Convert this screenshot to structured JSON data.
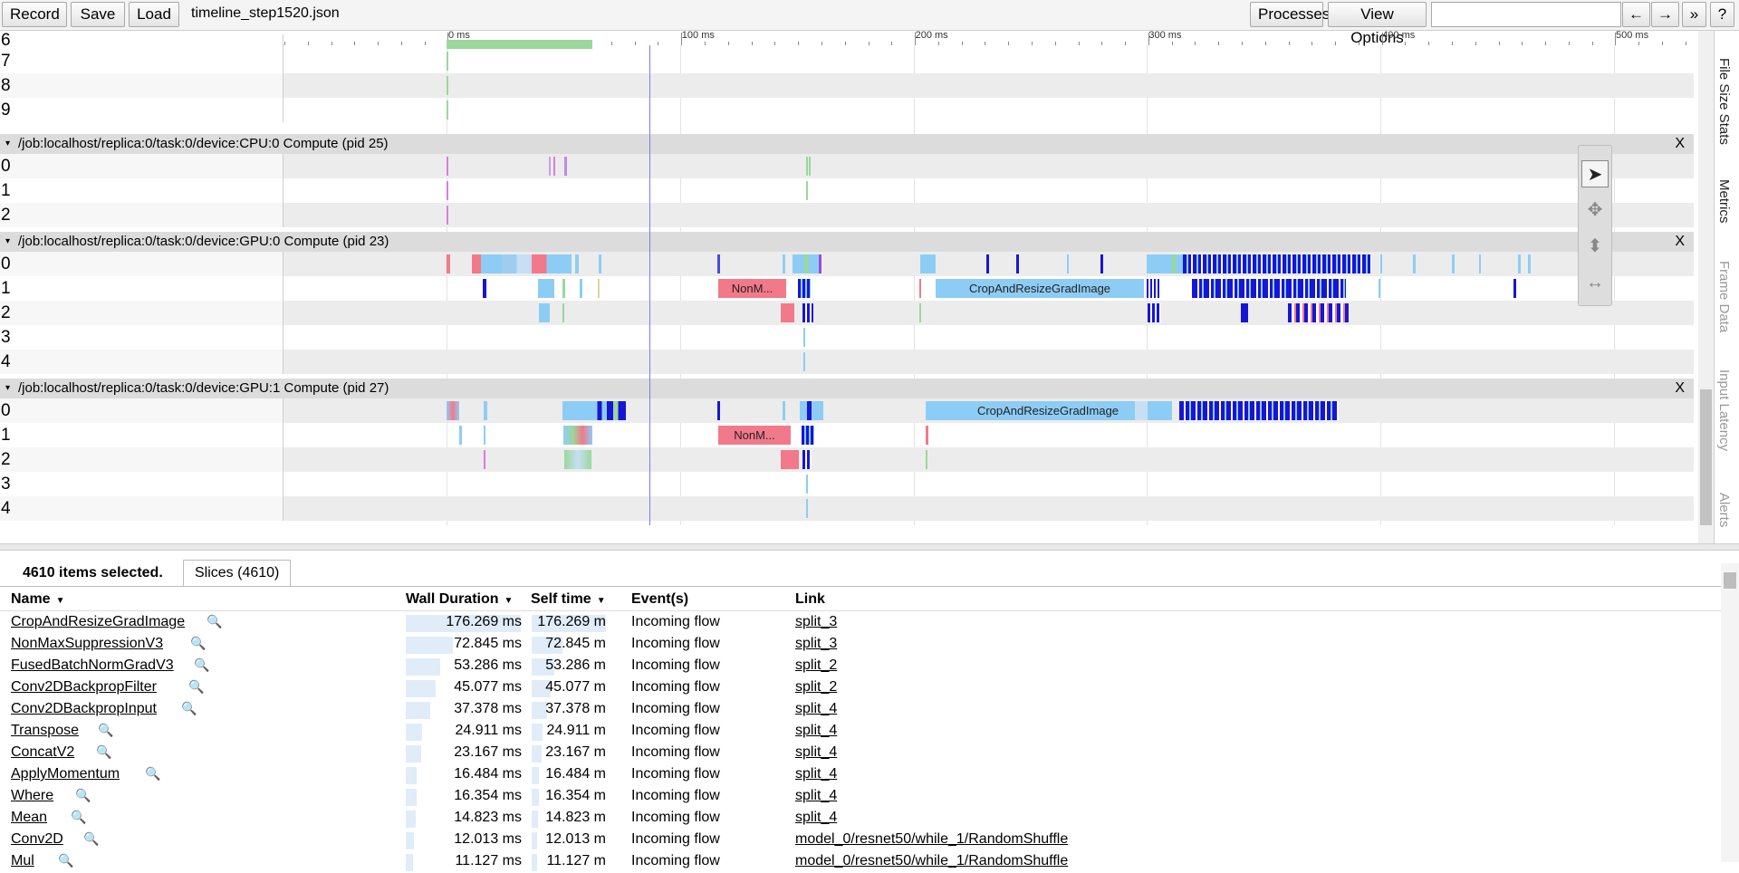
{
  "toolbar": {
    "record": "Record",
    "save": "Save",
    "load": "Load",
    "filename": "timeline_step1520.json",
    "processes": "Processes",
    "view_options": "View Options",
    "nav_left": "←",
    "nav_right": "→",
    "nav_more": "»",
    "help": "?"
  },
  "ruler": [
    "0 ms",
    "100 ms",
    "200 ms",
    "300 ms",
    "400 ms",
    "500 ms"
  ],
  "top_rows": [
    "6",
    "7",
    "8",
    "9"
  ],
  "groups": [
    {
      "title": "/job:localhost/replica:0/task:0/device:CPU:0 Compute (pid 25)",
      "rows": [
        "0",
        "1",
        "2"
      ]
    },
    {
      "title": "/job:localhost/replica:0/task:0/device:GPU:0 Compute (pid 23)",
      "rows": [
        "0",
        "1",
        "2",
        "3",
        "4"
      ]
    },
    {
      "title": "/job:localhost/replica:0/task:0/device:GPU:1 Compute (pid 27)",
      "rows": [
        "0",
        "1",
        "2",
        "3",
        "4"
      ]
    }
  ],
  "close_glyph": "X",
  "collapse_glyph": "▾",
  "slice_labels": {
    "gpu0_nms": "NonM...",
    "gpu0_crop": "CropAndResizeGradImage",
    "gpu1_crop": "CropAndResizeGradImage",
    "gpu1_nms": "NonM..."
  },
  "side_tabs": [
    "File Size Stats",
    "Metrics",
    "Frame Data",
    "Input Latency",
    "Alerts"
  ],
  "palette": {
    "select": "➤",
    "pan": "✥",
    "zoom": "⬍",
    "timing": "↔"
  },
  "colors": {
    "nms": "#f2798a",
    "crop": "#8dcdf5",
    "dense": "#1616d6",
    "green": "#9ad89a",
    "cursor": "#7a7af0"
  },
  "bottom": {
    "selected": "4610 items selected.",
    "tab": "Slices (4610)",
    "headers": {
      "name": "Name",
      "wall": "Wall Duration",
      "self": "Self time",
      "events": "Event(s)",
      "link": "Link"
    },
    "sort_glyph": "▼",
    "magnifier": "🔍",
    "rows": [
      {
        "name": "CropAndResizeGradImage",
        "wall": "176.269 ms",
        "self": "176.269 m",
        "frac": 1.0,
        "events": "Incoming flow",
        "link": "split_3"
      },
      {
        "name": "NonMaxSuppressionV3",
        "wall": "72.845 ms",
        "self": "72.845 m",
        "frac": 0.413,
        "events": "Incoming flow",
        "link": "split_3"
      },
      {
        "name": "FusedBatchNormGradV3",
        "wall": "53.286 ms",
        "self": "53.286 m",
        "frac": 0.302,
        "events": "Incoming flow",
        "link": "split_2"
      },
      {
        "name": "Conv2DBackpropFilter",
        "wall": "45.077 ms",
        "self": "45.077 m",
        "frac": 0.256,
        "events": "Incoming flow",
        "link": "split_2"
      },
      {
        "name": "Conv2DBackpropInput",
        "wall": "37.378 ms",
        "self": "37.378 m",
        "frac": 0.212,
        "events": "Incoming flow",
        "link": "split_4"
      },
      {
        "name": "Transpose",
        "wall": "24.911 ms",
        "self": "24.911 m",
        "frac": 0.141,
        "events": "Incoming flow",
        "link": "split_4"
      },
      {
        "name": "ConcatV2",
        "wall": "23.167 ms",
        "self": "23.167 m",
        "frac": 0.131,
        "events": "Incoming flow",
        "link": "split_4"
      },
      {
        "name": "ApplyMomentum",
        "wall": "16.484 ms",
        "self": "16.484 m",
        "frac": 0.094,
        "events": "Incoming flow",
        "link": "split_4"
      },
      {
        "name": "Where",
        "wall": "16.354 ms",
        "self": "16.354 m",
        "frac": 0.093,
        "events": "Incoming flow",
        "link": "split_4"
      },
      {
        "name": "Mean",
        "wall": "14.823 ms",
        "self": "14.823 m",
        "frac": 0.084,
        "events": "Incoming flow",
        "link": "split_4"
      },
      {
        "name": "Conv2D",
        "wall": "12.013 ms",
        "self": "12.013 m",
        "frac": 0.068,
        "events": "Incoming flow",
        "link": "model_0/resnet50/while_1/RandomShuffle"
      },
      {
        "name": "Mul",
        "wall": "11.127 ms",
        "self": "11.127 m",
        "frac": 0.063,
        "events": "Incoming flow",
        "link": "model_0/resnet50/while_1/RandomShuffle"
      }
    ]
  }
}
